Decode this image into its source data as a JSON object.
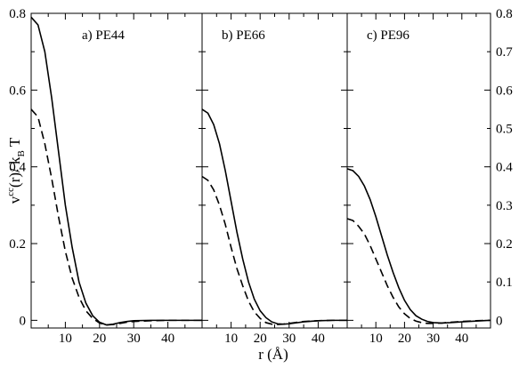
{
  "chart_data": [
    {
      "type": "line",
      "panel_label": "a) PE44",
      "xlabel": "",
      "ylabel": "",
      "xlim": [
        0,
        50
      ],
      "ylim": [
        -0.02,
        0.8
      ],
      "series": [
        {
          "style": "solid",
          "x": [
            0,
            2,
            4,
            6,
            8,
            10,
            12,
            14,
            16,
            18,
            20,
            22,
            24,
            26,
            28,
            30,
            35,
            40,
            45,
            50
          ],
          "y": [
            0.79,
            0.77,
            0.7,
            0.58,
            0.44,
            0.3,
            0.19,
            0.1,
            0.045,
            0.012,
            -0.005,
            -0.012,
            -0.01,
            -0.006,
            -0.003,
            -0.001,
            0.0,
            0.0,
            0.0,
            0.0
          ]
        },
        {
          "style": "dashed",
          "x": [
            0,
            2,
            4,
            6,
            8,
            10,
            12,
            14,
            16,
            18,
            20,
            22,
            24,
            26,
            28,
            30,
            35,
            40,
            45,
            50
          ],
          "y": [
            0.55,
            0.53,
            0.46,
            0.37,
            0.27,
            0.18,
            0.11,
            0.06,
            0.025,
            0.005,
            -0.007,
            -0.012,
            -0.011,
            -0.008,
            -0.005,
            -0.003,
            -0.001,
            0.0,
            0.0,
            0.0
          ]
        }
      ]
    },
    {
      "type": "line",
      "panel_label": "b) PE66",
      "xlabel": "",
      "ylabel": "",
      "xlim": [
        0,
        50
      ],
      "ylim": [
        -0.02,
        0.8
      ],
      "series": [
        {
          "style": "solid",
          "x": [
            0,
            2,
            4,
            6,
            8,
            10,
            12,
            14,
            16,
            18,
            20,
            22,
            24,
            26,
            28,
            30,
            35,
            40,
            45,
            50
          ],
          "y": [
            0.55,
            0.54,
            0.51,
            0.46,
            0.39,
            0.31,
            0.23,
            0.16,
            0.1,
            0.055,
            0.025,
            0.007,
            -0.004,
            -0.009,
            -0.01,
            -0.009,
            -0.004,
            -0.001,
            0.0,
            0.0
          ]
        },
        {
          "style": "dashed",
          "x": [
            0,
            2,
            4,
            6,
            8,
            10,
            12,
            14,
            16,
            18,
            20,
            22,
            24,
            26,
            28,
            30,
            35,
            40,
            45,
            50
          ],
          "y": [
            0.375,
            0.365,
            0.34,
            0.3,
            0.25,
            0.19,
            0.135,
            0.09,
            0.05,
            0.022,
            0.005,
            -0.006,
            -0.01,
            -0.011,
            -0.01,
            -0.008,
            -0.003,
            -0.001,
            0.0,
            0.0
          ]
        }
      ]
    },
    {
      "type": "line",
      "panel_label": "c) PE96",
      "xlabel": "",
      "ylabel": "",
      "xlim": [
        0,
        50
      ],
      "ylim": [
        -0.02,
        0.8
      ],
      "series": [
        {
          "style": "solid",
          "x": [
            0,
            2,
            4,
            6,
            8,
            10,
            12,
            14,
            16,
            18,
            20,
            22,
            24,
            26,
            28,
            30,
            33,
            36,
            40,
            45,
            50
          ],
          "y": [
            0.395,
            0.39,
            0.375,
            0.35,
            0.315,
            0.27,
            0.22,
            0.17,
            0.125,
            0.085,
            0.052,
            0.028,
            0.012,
            0.003,
            -0.003,
            -0.006,
            -0.007,
            -0.006,
            -0.004,
            -0.002,
            0.0
          ]
        },
        {
          "style": "dashed",
          "x": [
            0,
            2,
            4,
            6,
            8,
            10,
            12,
            14,
            16,
            18,
            20,
            22,
            24,
            26,
            28,
            30,
            33,
            36,
            40,
            45,
            50
          ],
          "y": [
            0.265,
            0.26,
            0.245,
            0.225,
            0.195,
            0.16,
            0.125,
            0.09,
            0.06,
            0.035,
            0.017,
            0.005,
            -0.002,
            -0.006,
            -0.008,
            -0.008,
            -0.007,
            -0.005,
            -0.003,
            -0.001,
            0.0
          ]
        }
      ]
    }
  ],
  "axes": {
    "x_ticks": [
      "10",
      "20",
      "30",
      "40"
    ],
    "x_tick_values": [
      10,
      20,
      30,
      40
    ],
    "left_y_ticks": [
      "0",
      "0.2",
      "0.4",
      "0.6",
      "0.8"
    ],
    "left_y_values": [
      0,
      0.2,
      0.4,
      0.6,
      0.8
    ],
    "right_y_ticks": [
      "0",
      "0.1",
      "0.2",
      "0.3",
      "0.4",
      "0.5",
      "0.6",
      "0.7",
      "0.8"
    ],
    "right_y_values": [
      0,
      0.1,
      0.2,
      0.3,
      0.4,
      0.5,
      0.6,
      0.7,
      0.8
    ],
    "x_axis_label": "r (Å)",
    "y_axis_label": {
      "v": "v",
      "sup": "cc",
      "mid": "(r)/ k",
      "sub": "B",
      "end": " T"
    }
  }
}
